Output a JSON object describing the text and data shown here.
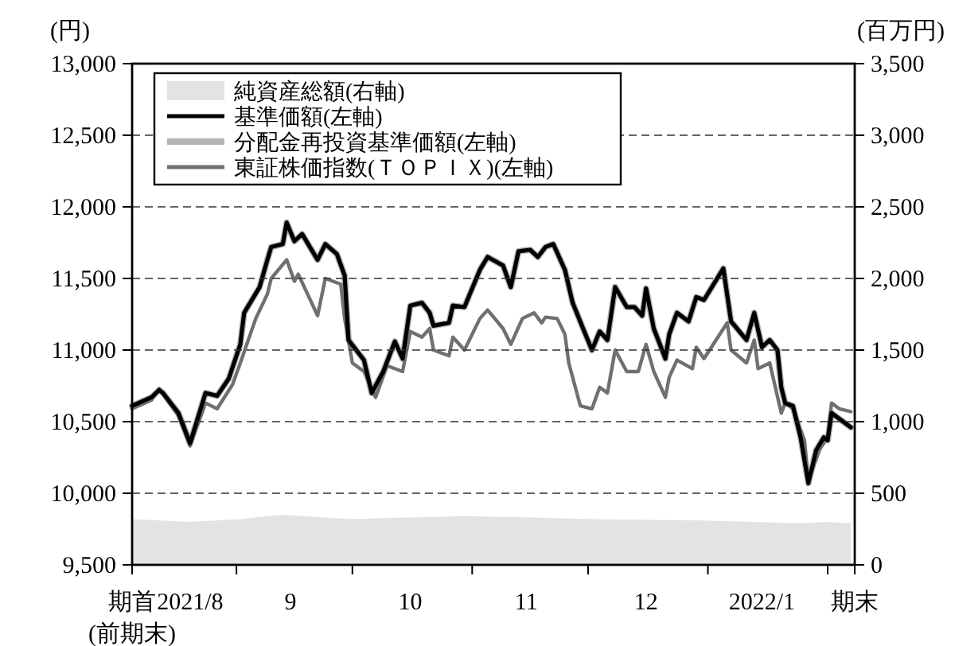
{
  "chart_data": {
    "type": "line",
    "ylabel": "(円)",
    "y2label": "(百万円)",
    "xlim": [
      "2021-08-05",
      "2022-02-08"
    ],
    "xticks": [
      {
        "value": "2021-08-05",
        "label": "期首\n(前期末)"
      },
      {
        "value": "2021-08-20",
        "label": "2021/8"
      },
      {
        "value": "2021-09-01",
        "label": null
      },
      {
        "value": "2021-09-15",
        "label": "9"
      },
      {
        "value": "2021-10-01",
        "label": null
      },
      {
        "value": "2021-10-16",
        "label": "10"
      },
      {
        "value": "2021-11-01",
        "label": null
      },
      {
        "value": "2021-11-15",
        "label": "11"
      },
      {
        "value": "2021-12-01",
        "label": null
      },
      {
        "value": "2021-12-16",
        "label": "12"
      },
      {
        "value": "2022-01-01",
        "label": null
      },
      {
        "value": "2022-01-15",
        "label": "2022/1"
      },
      {
        "value": "2022-02-01",
        "label": null
      },
      {
        "value": "2022-02-08",
        "label": "期末"
      }
    ],
    "ylim": [
      9500,
      13000
    ],
    "yticks": [
      {
        "value": 9500,
        "label": "9,500"
      },
      {
        "value": 10000,
        "label": "10,000"
      },
      {
        "value": 10500,
        "label": "10,500"
      },
      {
        "value": 11000,
        "label": "11,000"
      },
      {
        "value": 11500,
        "label": "11,500"
      },
      {
        "value": 12000,
        "label": "12,000"
      },
      {
        "value": 12500,
        "label": "12,500"
      },
      {
        "value": 13000,
        "label": "13,000"
      }
    ],
    "y2lim": [
      0,
      3500
    ],
    "y2ticks": [
      0,
      500,
      {
        "value": 1000,
        "label": "1,000"
      },
      {
        "value": 1500,
        "label": "1,500"
      },
      {
        "value": 2000,
        "label": "2,000"
      },
      {
        "value": 2500,
        "label": "2,500"
      },
      {
        "value": 3000,
        "label": "3,000"
      },
      {
        "value": 3500,
        "label": "3,500"
      }
    ],
    "grid": "y",
    "legend": "top left",
    "line_style": "solid",
    "marker": "none",
    "series": [
      {
        "name": "純資産総額(右軸)",
        "type": "area",
        "axis": "y2",
        "color": "#e3e3e3",
        "x": [
          "2021-08-05",
          "2021-08-20",
          "2021-09-02",
          "2021-09-13",
          "2021-09-30",
          "2021-10-30",
          "2021-11-16",
          "2021-12-02",
          "2021-12-31",
          "2022-01-25",
          "2022-02-01",
          "2022-02-07"
        ],
        "values": [
          320,
          300,
          320,
          350,
          320,
          340,
          330,
          320,
          310,
          290,
          300,
          290
        ]
      },
      {
        "name": "基準価額(左軸)",
        "color": "#000000",
        "x": [
          "2021-08-05",
          "2021-08-10",
          "2021-08-12",
          "2021-08-13",
          "2021-08-17",
          "2021-08-20",
          "2021-08-24",
          "2021-08-27",
          "2021-08-30",
          "2021-09-02",
          "2021-09-03",
          "2021-09-07",
          "2021-09-09",
          "2021-09-10",
          "2021-09-13",
          "2021-09-14",
          "2021-09-16",
          "2021-09-18",
          "2021-09-22",
          "2021-09-24",
          "2021-09-27",
          "2021-09-29",
          "2021-09-30",
          "2021-10-04",
          "2021-10-06",
          "2021-10-09",
          "2021-10-12",
          "2021-10-14",
          "2021-10-16",
          "2021-10-19",
          "2021-10-21",
          "2021-10-22",
          "2021-10-26",
          "2021-10-27",
          "2021-10-30",
          "2021-11-03",
          "2021-11-05",
          "2021-11-09",
          "2021-11-11",
          "2021-11-13",
          "2021-11-16",
          "2021-11-18",
          "2021-11-20",
          "2021-11-22",
          "2021-11-25",
          "2021-11-27",
          "2021-11-30",
          "2021-12-02",
          "2021-12-04",
          "2021-12-06",
          "2021-12-08",
          "2021-12-11",
          "2021-12-13",
          "2021-12-15",
          "2021-12-16",
          "2021-12-18",
          "2021-12-21",
          "2021-12-22",
          "2021-12-24",
          "2021-12-27",
          "2021-12-29",
          "2021-12-31",
          "2022-01-05",
          "2022-01-07",
          "2022-01-11",
          "2022-01-13",
          "2022-01-15",
          "2022-01-17",
          "2022-01-19",
          "2022-01-20",
          "2022-01-21",
          "2022-01-23",
          "2022-01-25",
          "2022-01-27",
          "2022-01-29",
          "2022-01-31",
          "2022-02-01",
          "2022-02-02",
          "2022-02-04",
          "2022-02-07"
        ],
        "values": [
          10610,
          10670,
          10720,
          10700,
          10560,
          10350,
          10700,
          10680,
          10800,
          11040,
          11260,
          11440,
          11630,
          11720,
          11740,
          11890,
          11760,
          11810,
          11630,
          11740,
          11670,
          11520,
          11070,
          10930,
          10700,
          10850,
          11060,
          10940,
          11310,
          11330,
          11260,
          11170,
          11190,
          11310,
          11300,
          11560,
          11650,
          11590,
          11440,
          11690,
          11700,
          11650,
          11720,
          11740,
          11560,
          11330,
          11130,
          11000,
          11130,
          11070,
          11440,
          11300,
          11300,
          11240,
          11430,
          11150,
          10940,
          11110,
          11260,
          11200,
          11370,
          11350,
          11570,
          11200,
          11070,
          11260,
          11020,
          11070,
          11000,
          10740,
          10630,
          10610,
          10390,
          10070,
          10300,
          10390,
          10370,
          10560,
          10520,
          10460
        ]
      },
      {
        "name": "分配金再投資基準価額(左軸)",
        "color": "#b4b4b4",
        "x": [
          "2021-08-05",
          "2021-08-10",
          "2021-08-12",
          "2021-08-13",
          "2021-08-17",
          "2021-08-20",
          "2021-08-24",
          "2021-08-27",
          "2021-08-30",
          "2021-09-02",
          "2021-09-03",
          "2021-09-07",
          "2021-09-09",
          "2021-09-10",
          "2021-09-13",
          "2021-09-14",
          "2021-09-16",
          "2021-09-18",
          "2021-09-22",
          "2021-09-24",
          "2021-09-27",
          "2021-09-29",
          "2021-09-30",
          "2021-10-04",
          "2021-10-06",
          "2021-10-09",
          "2021-10-12",
          "2021-10-14",
          "2021-10-16",
          "2021-10-19",
          "2021-10-21",
          "2021-10-22",
          "2021-10-26",
          "2021-10-27",
          "2021-10-30",
          "2021-11-03",
          "2021-11-05",
          "2021-11-09",
          "2021-11-11",
          "2021-11-13",
          "2021-11-16",
          "2021-11-18",
          "2021-11-20",
          "2021-11-22",
          "2021-11-25",
          "2021-11-27",
          "2021-11-30",
          "2021-12-02",
          "2021-12-04",
          "2021-12-06",
          "2021-12-08",
          "2021-12-11",
          "2021-12-13",
          "2021-12-15",
          "2021-12-16",
          "2021-12-18",
          "2021-12-21",
          "2021-12-22",
          "2021-12-24",
          "2021-12-27",
          "2021-12-29",
          "2021-12-31",
          "2022-01-05",
          "2022-01-07",
          "2022-01-11",
          "2022-01-13",
          "2022-01-15",
          "2022-01-17",
          "2022-01-19",
          "2022-01-20",
          "2022-01-21",
          "2022-01-23",
          "2022-01-25",
          "2022-01-27",
          "2022-01-29",
          "2022-01-31",
          "2022-02-01",
          "2022-02-02",
          "2022-02-04",
          "2022-02-07"
        ],
        "values": [
          10610,
          10670,
          10720,
          10700,
          10560,
          10350,
          10700,
          10680,
          10800,
          11040,
          11260,
          11440,
          11630,
          11720,
          11740,
          11890,
          11760,
          11810,
          11630,
          11740,
          11670,
          11520,
          11070,
          10930,
          10700,
          10850,
          11060,
          10940,
          11310,
          11330,
          11260,
          11170,
          11190,
          11310,
          11300,
          11560,
          11650,
          11590,
          11440,
          11690,
          11700,
          11650,
          11720,
          11740,
          11560,
          11330,
          11130,
          11000,
          11130,
          11070,
          11440,
          11300,
          11300,
          11240,
          11430,
          11150,
          10940,
          11110,
          11260,
          11200,
          11370,
          11350,
          11570,
          11200,
          11070,
          11260,
          11020,
          11070,
          11000,
          10740,
          10630,
          10610,
          10390,
          10070,
          10300,
          10390,
          10370,
          10560,
          10520,
          10460
        ]
      },
      {
        "name": "東証株価指数(ＴＯＰＩＸ)(左軸)",
        "color": "#707070",
        "x": [
          "2021-08-05",
          "2021-08-10",
          "2021-08-12",
          "2021-08-17",
          "2021-08-20",
          "2021-08-24",
          "2021-08-27",
          "2021-08-31",
          "2021-09-02",
          "2021-09-06",
          "2021-09-09",
          "2021-09-10",
          "2021-09-14",
          "2021-09-16",
          "2021-09-17",
          "2021-09-22",
          "2021-09-24",
          "2021-09-28",
          "2021-09-29",
          "2021-10-01",
          "2021-10-04",
          "2021-10-07",
          "2021-10-10",
          "2021-10-14",
          "2021-10-16",
          "2021-10-19",
          "2021-10-21",
          "2021-10-22",
          "2021-10-26",
          "2021-10-27",
          "2021-10-30",
          "2021-11-03",
          "2021-11-05",
          "2021-11-09",
          "2021-11-11",
          "2021-11-14",
          "2021-11-17",
          "2021-11-19",
          "2021-11-20",
          "2021-11-23",
          "2021-11-25",
          "2021-11-26",
          "2021-11-29",
          "2021-12-02",
          "2021-12-04",
          "2021-12-06",
          "2021-12-08",
          "2021-12-11",
          "2021-12-14",
          "2021-12-16",
          "2021-12-18",
          "2021-12-21",
          "2021-12-22",
          "2021-12-24",
          "2021-12-28",
          "2021-12-29",
          "2021-12-31",
          "2022-01-06",
          "2022-01-07",
          "2022-01-11",
          "2022-01-13",
          "2022-01-14",
          "2022-01-17",
          "2022-01-20",
          "2022-01-21",
          "2022-01-23",
          "2022-01-26",
          "2022-01-27",
          "2022-01-30",
          "2022-02-01",
          "2022-02-02",
          "2022-02-04",
          "2022-02-07"
        ],
        "values": [
          10590,
          10650,
          10730,
          10540,
          10330,
          10630,
          10590,
          10760,
          10910,
          11220,
          11390,
          11500,
          11630,
          11480,
          11530,
          11240,
          11500,
          11460,
          11220,
          10910,
          10850,
          10670,
          10890,
          10850,
          11130,
          11090,
          11150,
          11000,
          10960,
          11090,
          11000,
          11220,
          11280,
          11150,
          11040,
          11220,
          11260,
          11190,
          11230,
          11220,
          11110,
          10910,
          10610,
          10590,
          10740,
          10700,
          11000,
          10850,
          10850,
          11040,
          10850,
          10670,
          10810,
          10930,
          10870,
          11020,
          10940,
          11190,
          11000,
          10910,
          11070,
          10870,
          10910,
          10560,
          10630,
          10590,
          10370,
          10090,
          10310,
          10390,
          10630,
          10590,
          10570
        ]
      }
    ]
  }
}
